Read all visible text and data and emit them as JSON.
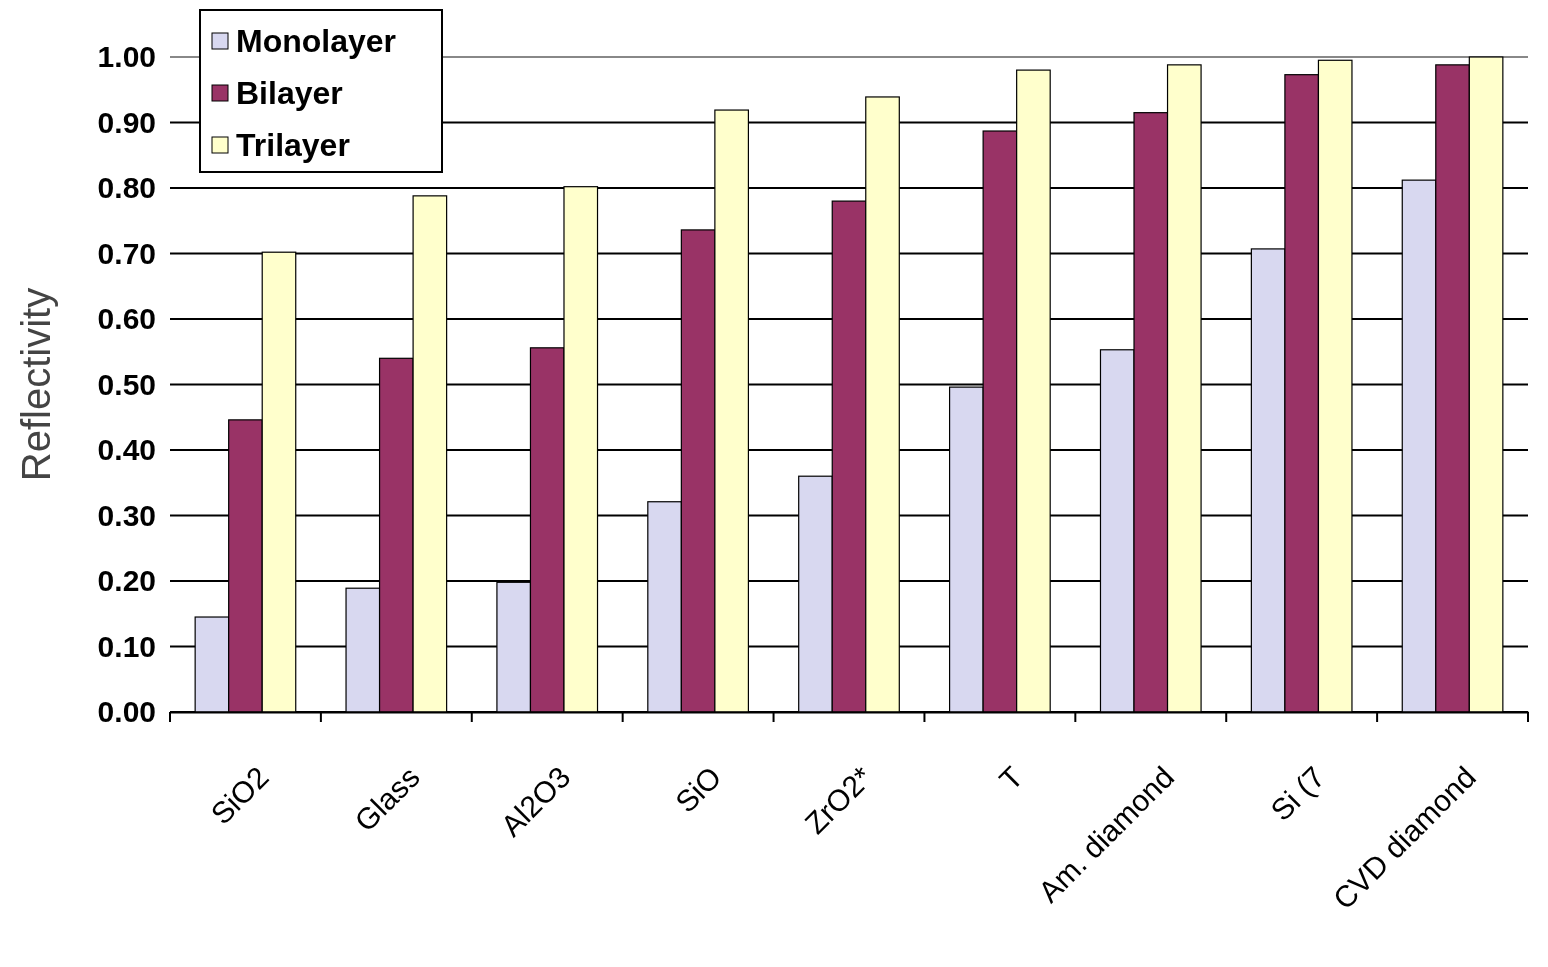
{
  "chart_data": {
    "type": "bar",
    "ylabel": "Reflectivity",
    "categories": [
      "SiO2",
      "Glass",
      "Al2O3",
      "SiO",
      "ZrO2*",
      "T",
      "Am. diamond",
      "Si (7",
      "CVD diamond"
    ],
    "series": [
      {
        "name": "Monolayer",
        "color": "#d8d8f0",
        "values": [
          0.145,
          0.189,
          0.198,
          0.321,
          0.36,
          0.496,
          0.553,
          0.707,
          0.812
        ]
      },
      {
        "name": "Bilayer",
        "color": "#993366",
        "values": [
          0.446,
          0.54,
          0.556,
          0.736,
          0.78,
          0.887,
          0.915,
          0.973,
          0.988
        ]
      },
      {
        "name": "Trilayer",
        "color": "#ffffcc",
        "values": [
          0.702,
          0.788,
          0.802,
          0.919,
          0.939,
          0.98,
          0.988,
          0.995,
          1.0
        ]
      }
    ],
    "ylim": [
      0,
      1
    ],
    "yticks": [
      {
        "value": 0,
        "label": "0.00"
      },
      {
        "value": 0.1,
        "label": "0.10"
      },
      {
        "value": 0.2,
        "label": "0.20"
      },
      {
        "value": 0.3,
        "label": "0.30"
      },
      {
        "value": 0.4,
        "label": "0.40"
      },
      {
        "value": 0.5,
        "label": "0.50"
      },
      {
        "value": 0.6,
        "label": "0.60"
      },
      {
        "value": 0.7,
        "label": "0.70"
      },
      {
        "value": 0.8,
        "label": "0.80"
      },
      {
        "value": 0.9,
        "label": "0.90"
      },
      {
        "value": 1,
        "label": "1.00"
      }
    ],
    "grid": "y",
    "legend": "top left"
  }
}
